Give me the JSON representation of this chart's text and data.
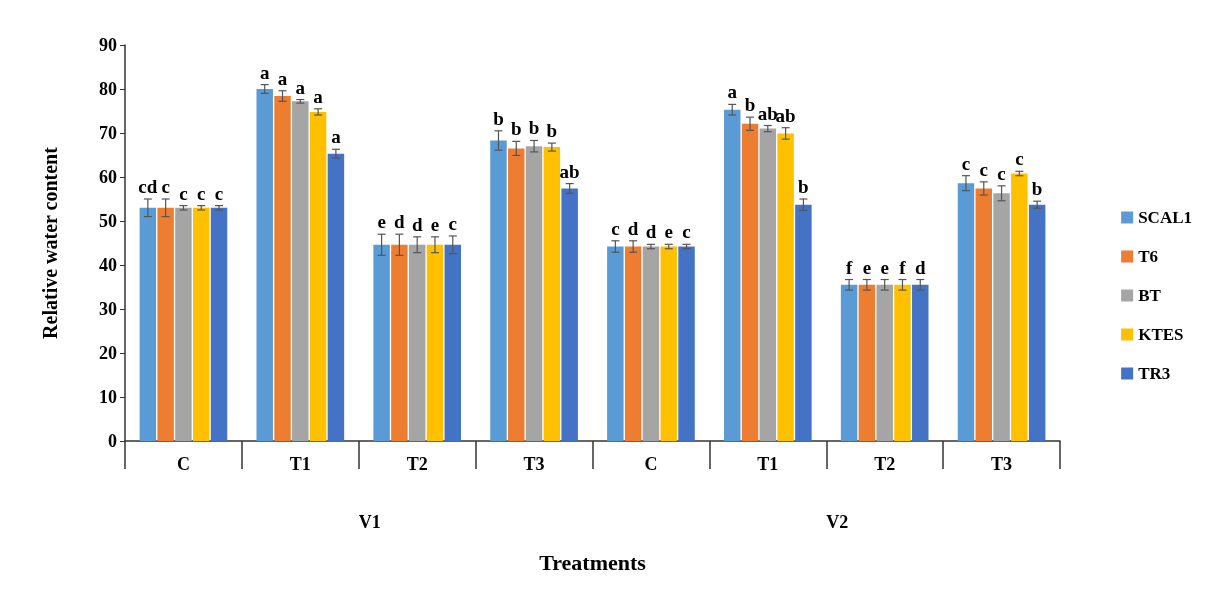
{
  "chart_data": {
    "type": "bar",
    "xlabel": "Treatments",
    "ylabel": "Relative water content",
    "categories": [
      "C",
      "T1",
      "T2",
      "T3",
      "C",
      "T1",
      "T2",
      "T3"
    ],
    "annotations": [
      "V1",
      "V2"
    ],
    "ylim": [
      0,
      90
    ],
    "yticks": [
      0,
      10,
      20,
      30,
      40,
      50,
      60,
      70,
      80,
      90
    ],
    "grid": false,
    "legend": "right",
    "series": [
      {
        "name": "SCAL1",
        "color": "#5b9bd5",
        "values": [
          53.0,
          80.0,
          44.6,
          68.3,
          44.2,
          75.3,
          35.5,
          58.6
        ],
        "errors": [
          2,
          1,
          2.4,
          2.2,
          1.3,
          1.2,
          1.2,
          1.7
        ],
        "value_labels": [
          "cd",
          "a",
          "e",
          "b",
          "c",
          "a",
          "f",
          "c"
        ]
      },
      {
        "name": "T6",
        "color": "#ed7d31",
        "values": [
          53.0,
          78.4,
          44.6,
          66.5,
          44.2,
          72.1,
          35.5,
          57.4
        ],
        "errors": [
          2,
          1.2,
          2.4,
          1.6,
          1.3,
          1.5,
          1.2,
          1.5
        ],
        "value_labels": [
          "c",
          "a",
          "d",
          "b",
          "d",
          "b",
          "e",
          "c"
        ]
      },
      {
        "name": "BT",
        "color": "#a5a5a5",
        "values": [
          53.0,
          77.2,
          44.6,
          67.0,
          44.2,
          71.0,
          35.5,
          56.3
        ],
        "errors": [
          0.5,
          0.4,
          1.8,
          1.3,
          0.5,
          0.7,
          1.2,
          1.7
        ],
        "value_labels": [
          "c",
          "a",
          "d",
          "b",
          "d",
          "ab",
          "e",
          "c"
        ]
      },
      {
        "name": "KTES",
        "color": "#ffc000",
        "values": [
          53.0,
          74.8,
          44.6,
          66.8,
          44.2,
          69.9,
          35.5,
          60.8
        ],
        "errors": [
          0.5,
          0.7,
          1.8,
          0.9,
          0.5,
          1.3,
          1.2,
          0.5
        ],
        "value_labels": [
          "c",
          "a",
          "e",
          "b",
          "e",
          "ab",
          "f",
          "c"
        ]
      },
      {
        "name": "TR3",
        "color": "#4472c4",
        "values": [
          53.0,
          65.3,
          44.6,
          57.4,
          44.2,
          53.7,
          35.5,
          53.7
        ],
        "errors": [
          0.5,
          1,
          2,
          1.1,
          0.5,
          1.3,
          1.2,
          0.8
        ],
        "value_labels": [
          "c",
          "a",
          "c",
          "ab",
          "c",
          "b",
          "d",
          "b"
        ]
      }
    ]
  }
}
